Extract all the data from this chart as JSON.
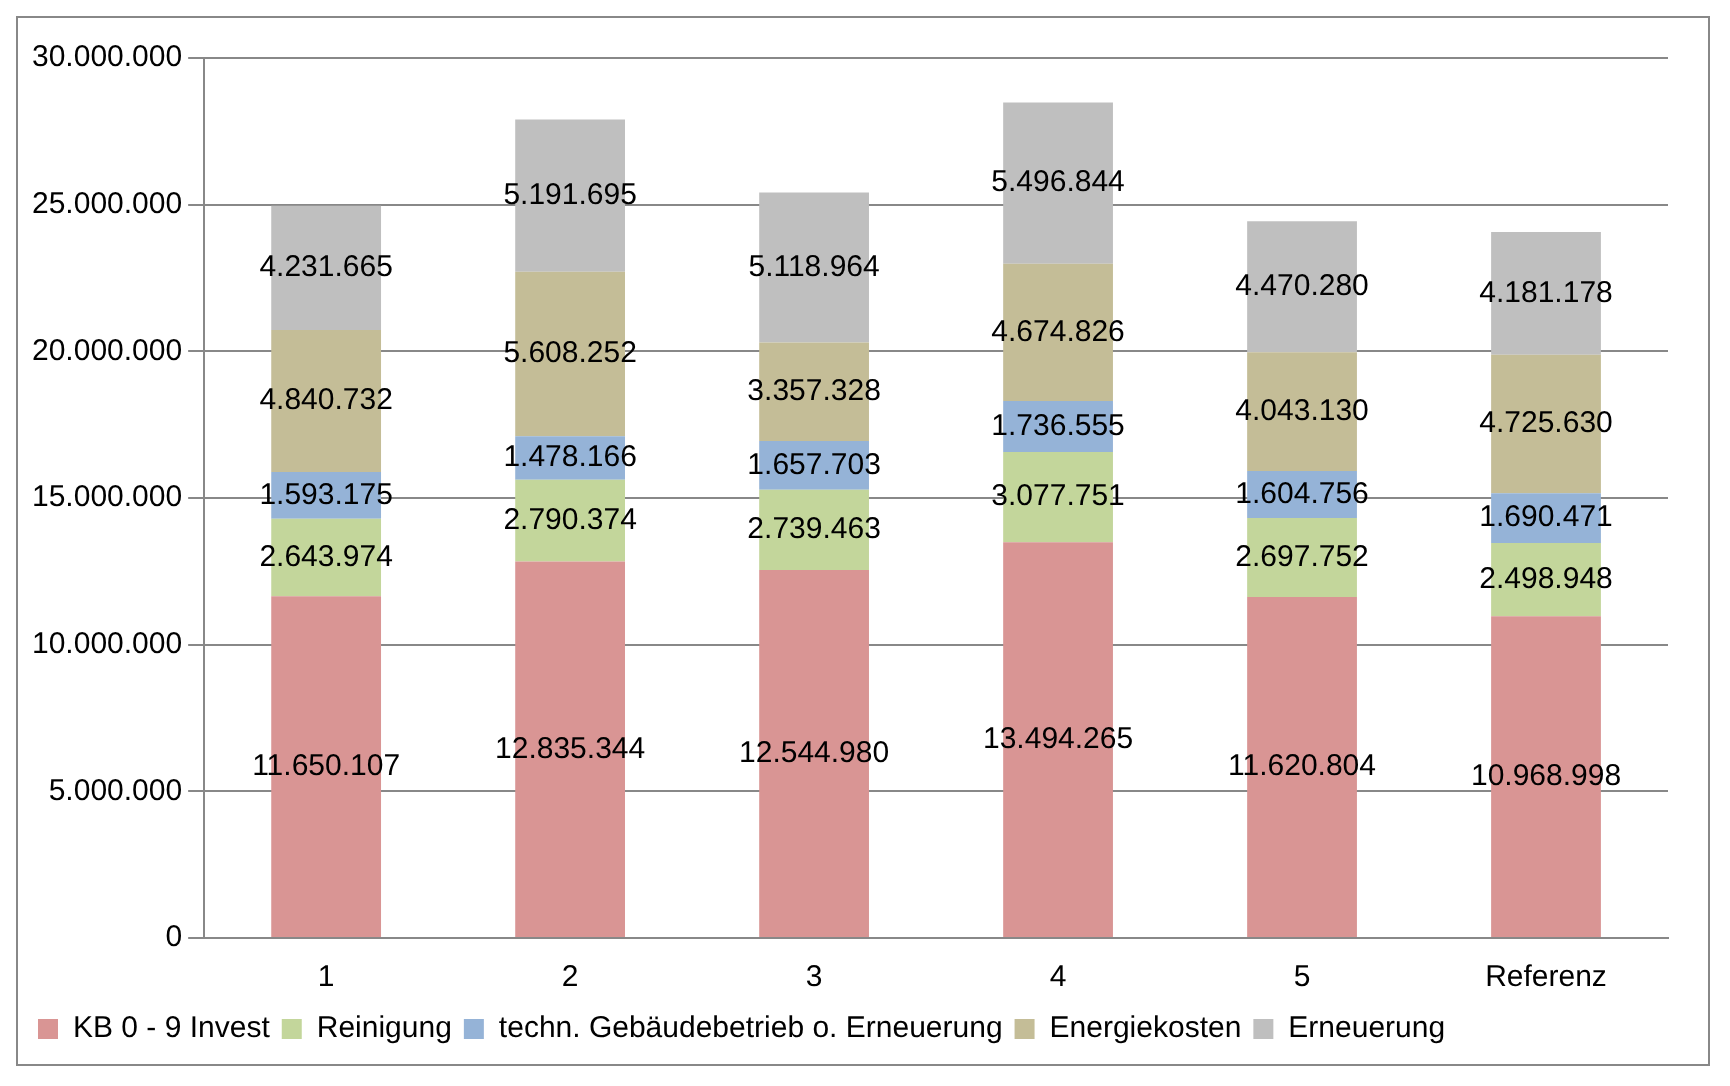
{
  "chart_data": {
    "type": "bar",
    "stacked": true,
    "categories": [
      "1",
      "2",
      "3",
      "4",
      "5",
      "Referenz"
    ],
    "series": [
      {
        "name": "KB 0 - 9 Invest",
        "color": "#d99594",
        "values": [
          11650107,
          12835344,
          12544980,
          13494265,
          11620804,
          10968998
        ],
        "value_labels": [
          "11.650.107",
          "12.835.344",
          "12.544.980",
          "13.494.265",
          "11.620.804",
          "10.968.998"
        ]
      },
      {
        "name": "Reinigung",
        "color": "#c3d69b",
        "values": [
          2643974,
          2790374,
          2739463,
          3077751,
          2697752,
          2498948
        ],
        "value_labels": [
          "2.643.974",
          "2.790.374",
          "2.739.463",
          "3.077.751",
          "2.697.752",
          "2.498.948"
        ]
      },
      {
        "name": "techn. Gebäudebetrieb o. Erneuerung",
        "color": "#95b3d7",
        "values": [
          1593175,
          1478166,
          1657703,
          1736555,
          1604756,
          1690471
        ],
        "value_labels": [
          "1.593.175",
          "1.478.166",
          "1.657.703",
          "1.736.555",
          "1.604.756",
          "1.690.471"
        ]
      },
      {
        "name": "Energiekosten",
        "color": "#c4bd97",
        "values": [
          4840732,
          5608252,
          3357328,
          4674826,
          4043130,
          4725630
        ],
        "value_labels": [
          "4.840.732",
          "5.608.252",
          "3.357.328",
          "4.674.826",
          "4.043.130",
          "4.725.630"
        ]
      },
      {
        "name": "Erneuerung",
        "color": "#bfbfbf",
        "values": [
          4231665,
          5191695,
          5118964,
          5496844,
          4470280,
          4181178
        ],
        "value_labels": [
          "4.231.665",
          "5.191.695",
          "5.118.964",
          "5.496.844",
          "4.470.280",
          "4.181.178"
        ]
      }
    ],
    "ylim": [
      0,
      30000000
    ],
    "yticks": [
      0,
      {
        "value": 5000000,
        "label": "5.000.000"
      },
      {
        "value": 10000000,
        "label": "10.000.000"
      },
      {
        "value": 15000000,
        "label": "15.000.000"
      },
      {
        "value": 20000000,
        "label": "20.000.000"
      },
      {
        "value": 25000000,
        "label": "25.000.000"
      },
      {
        "value": 30000000,
        "label": "30.000.000"
      }
    ],
    "grid": "y",
    "legend": "bottom"
  }
}
